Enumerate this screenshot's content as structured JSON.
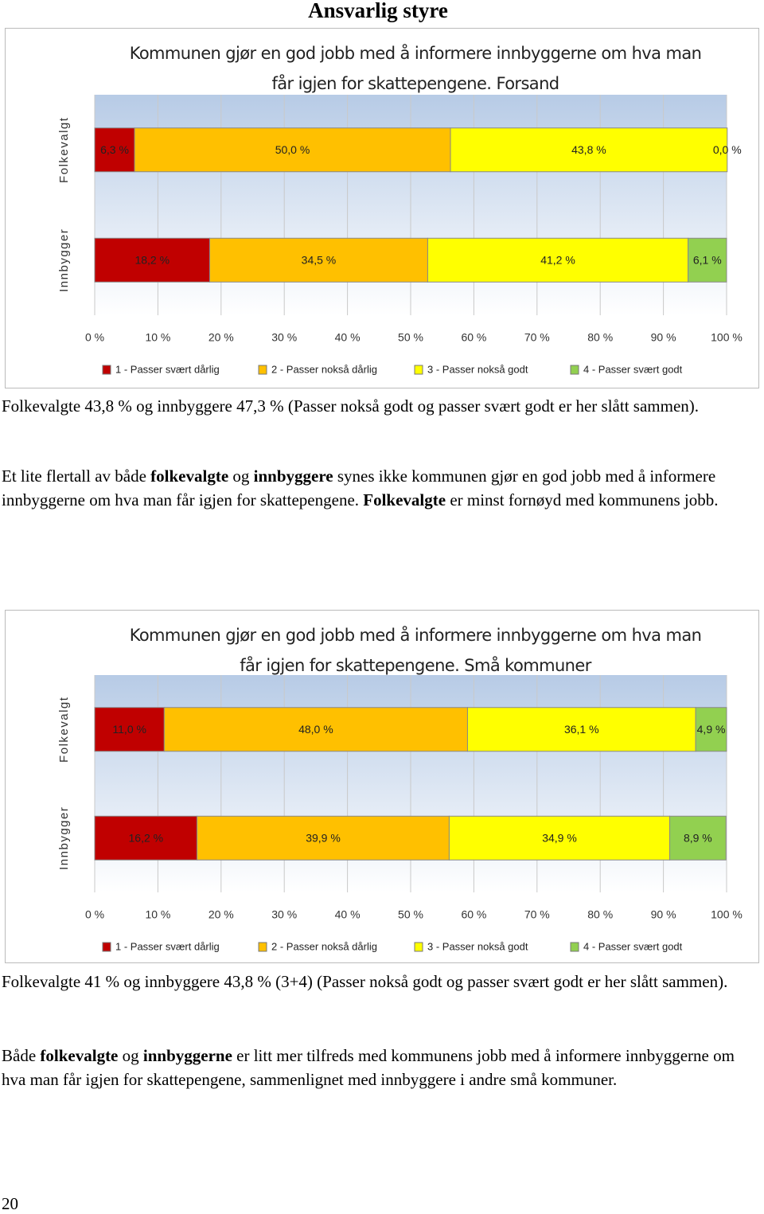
{
  "heading": "Ansvarlig styre",
  "chart_data": [
    {
      "type": "stacked-bar-horizontal",
      "title": "Kommunen gjør en god jobb med å informere innbyggerne om hva man får igjen for skattepengene. Forsand",
      "categories": [
        "Folkevalgt",
        "Innbygger"
      ],
      "series": [
        {
          "name": "1 - Passer svært dårlig",
          "color": "#c00000",
          "values": [
            6.3,
            18.2
          ],
          "value_labels": [
            "6,3 %",
            "18,2 %"
          ]
        },
        {
          "name": "2 - Passer nokså dårlig",
          "color": "#ffc000",
          "values": [
            50.0,
            34.5
          ],
          "value_labels": [
            "50,0 %",
            "34,5 %"
          ]
        },
        {
          "name": "3 - Passer nokså godt",
          "color": "#ffff00",
          "values": [
            43.8,
            41.2
          ],
          "value_labels": [
            "43,8 %",
            "41,2 %"
          ]
        },
        {
          "name": "4 - Passer svært godt",
          "color": "#92d050",
          "values": [
            0.0,
            6.1
          ],
          "value_labels": [
            "0,0 %",
            "6,1 %"
          ]
        }
      ],
      "xlim": [
        0,
        100
      ],
      "xticks": [
        {
          "value": 0,
          "label": "0 %"
        },
        {
          "value": 10,
          "label": "10 %"
        },
        {
          "value": 20,
          "label": "20 %"
        },
        {
          "value": 30,
          "label": "30 %"
        },
        {
          "value": 40,
          "label": "40 %"
        },
        {
          "value": 50,
          "label": "50 %"
        },
        {
          "value": 60,
          "label": "60 %"
        },
        {
          "value": 70,
          "label": "70 %"
        },
        {
          "value": 80,
          "label": "80 %"
        },
        {
          "value": 90,
          "label": "90 %"
        },
        {
          "value": 100,
          "label": "100 %"
        }
      ],
      "grid": true,
      "legend": "bottom"
    },
    {
      "type": "stacked-bar-horizontal",
      "title": "Kommunen gjør en god jobb med å informere innbyggerne om hva man får igjen for skattepengene. Små kommuner",
      "categories": [
        "Folkevalgt",
        "Innbygger"
      ],
      "series": [
        {
          "name": "1 - Passer svært dårlig",
          "color": "#c00000",
          "values": [
            11.0,
            16.2
          ],
          "value_labels": [
            "11,0 %",
            "16,2 %"
          ]
        },
        {
          "name": "2 - Passer nokså dårlig",
          "color": "#ffc000",
          "values": [
            48.0,
            39.9
          ],
          "value_labels": [
            "48,0 %",
            "39,9 %"
          ]
        },
        {
          "name": "3 - Passer nokså godt",
          "color": "#ffff00",
          "values": [
            36.1,
            34.9
          ],
          "value_labels": [
            "36,1 %",
            "34,9 %"
          ]
        },
        {
          "name": "4 - Passer svært godt",
          "color": "#92d050",
          "values": [
            4.9,
            8.9
          ],
          "value_labels": [
            "4,9 %",
            "8,9 %"
          ]
        }
      ],
      "xlim": [
        0,
        100
      ],
      "xticks": [
        {
          "value": 0,
          "label": "0 %"
        },
        {
          "value": 10,
          "label": "10 %"
        },
        {
          "value": 20,
          "label": "20 %"
        },
        {
          "value": 30,
          "label": "30 %"
        },
        {
          "value": 40,
          "label": "40 %"
        },
        {
          "value": 50,
          "label": "50 %"
        },
        {
          "value": 60,
          "label": "60 %"
        },
        {
          "value": 70,
          "label": "70 %"
        },
        {
          "value": 80,
          "label": "80 %"
        },
        {
          "value": 90,
          "label": "90 %"
        },
        {
          "value": 100,
          "label": "100 %"
        }
      ],
      "grid": true,
      "legend": "bottom"
    }
  ],
  "paragraphs": [
    {
      "runs": [
        {
          "text": "Folkevalgte 43,8 % og innbyggere 47,3 % (Passer nokså godt og passer svært godt er her slått sammen)."
        }
      ]
    },
    {
      "runs": [
        {
          "text": "Et lite flertall av både "
        },
        {
          "text": "folkevalgte",
          "bold": true
        },
        {
          "text": " og "
        },
        {
          "text": "innbyggere",
          "bold": true
        },
        {
          "text": " synes ikke kommunen gjør en god jobb med å informere innbyggerne om hva man får igjen for skattepengene. "
        },
        {
          "text": "Folkevalgte",
          "bold": true
        },
        {
          "text": " er minst fornøyd med kommunens jobb."
        }
      ]
    },
    {
      "runs": [
        {
          "text": "Folkevalgte 41 % og innbyggere 43,8 % (3+4) (Passer nokså godt og passer svært godt er her slått sammen)."
        }
      ]
    },
    {
      "runs": [
        {
          "text": "Både "
        },
        {
          "text": "folkevalgte",
          "bold": true
        },
        {
          "text": " og "
        },
        {
          "text": "innbyggerne",
          "bold": true
        },
        {
          "text": " er litt mer tilfreds med kommunens jobb med å informere innbyggerne om hva man får igjen for skattepengene, sammenlignet med innbyggere i andre små kommuner."
        }
      ]
    }
  ],
  "page_number": "20"
}
